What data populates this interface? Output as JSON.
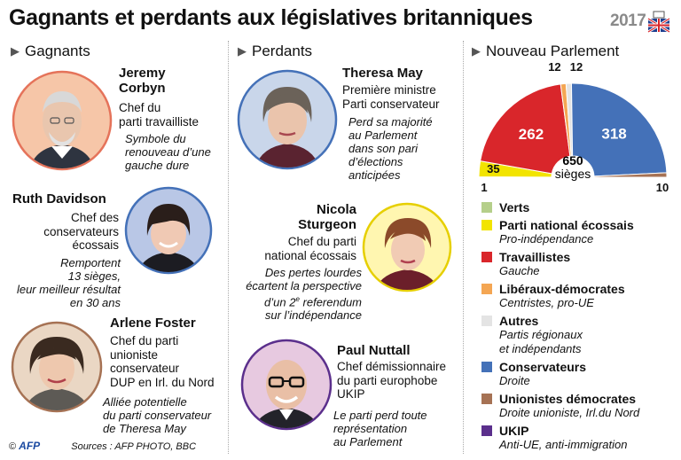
{
  "title": "Gagnants et perdants aux législatives britanniques",
  "badge": {
    "year": "2017"
  },
  "sections": {
    "winners": "Gagnants",
    "losers": "Perdants",
    "parliament": "Nouveau Parlement"
  },
  "winners": [
    {
      "name": [
        "Jeremy",
        "Corbyn"
      ],
      "role": [
        "Chef du",
        "parti travailliste"
      ],
      "note": [
        "Symbole du",
        "renouveau d’une",
        "gauche dure"
      ]
    },
    {
      "name": [
        "Ruth Davidson"
      ],
      "role": [
        "Chef des",
        "conservateurs",
        "écossais"
      ],
      "note": [
        "Remportent",
        "13 sièges,",
        "leur meilleur résultat",
        "en 30 ans"
      ]
    },
    {
      "name": [
        "Arlene Foster"
      ],
      "role": [
        "Chef du parti",
        "unioniste",
        "conservateur",
        "DUP en Irl. du Nord"
      ],
      "note": [
        "Alliée potentielle",
        "du parti conservateur",
        "de Theresa May"
      ]
    }
  ],
  "losers": [
    {
      "name": [
        "Theresa May"
      ],
      "role": [
        "Première ministre",
        "Parti conservateur"
      ],
      "note": [
        "Perd sa majorité",
        "au Parlement",
        "dans son pari",
        "d’élections",
        "anticipées"
      ]
    },
    {
      "name": [
        "Nicola",
        "Sturgeon"
      ],
      "role": [
        "Chef du parti",
        "national écossais"
      ],
      "note": [
        "Des pertes lourdes",
        "écartent la perspective",
        "d’un 2",
        "e",
        " referendum",
        "sur l’indépendance"
      ]
    },
    {
      "name": [
        "Paul Nuttall"
      ],
      "role": [
        "Chef démissionnaire",
        "du parti europhobe",
        "UKIP"
      ],
      "note": [
        "Le parti perd toute",
        "représentation",
        "au Parlement"
      ]
    }
  ],
  "chart_data": {
    "type": "pie",
    "variant": "semicircle",
    "total": 650,
    "total_label": "sièges",
    "slices": [
      {
        "party": "Verts",
        "seats": 1,
        "color": "#b5cf8a"
      },
      {
        "party": "Parti national écossais",
        "seats": 35,
        "color": "#f2e400"
      },
      {
        "party": "Travaillistes",
        "seats": 262,
        "color": "#d9262b"
      },
      {
        "party": "Libéraux-démocrates",
        "seats": 12,
        "color": "#f4a653"
      },
      {
        "party": "Autres",
        "seats": 12,
        "color": "#e4e4e4"
      },
      {
        "party": "Conservateurs",
        "seats": 318,
        "color": "#4471b8"
      },
      {
        "party": "Unionistes démocrates",
        "seats": 10,
        "color": "#a67254"
      },
      {
        "party": "UKIP",
        "seats": 0,
        "color": "#5b2f8c"
      }
    ]
  },
  "legend": [
    {
      "label": "Verts",
      "sub": "",
      "color": "#b5cf8a"
    },
    {
      "label": "Parti national écossais",
      "sub": "Pro-indépendance",
      "color": "#f2e400"
    },
    {
      "label": "Travaillistes",
      "sub": "Gauche",
      "color": "#d9262b"
    },
    {
      "label": "Libéraux-démocrates",
      "sub": "Centristes, pro-UE",
      "color": "#f4a653"
    },
    {
      "label": "Autres",
      "sub": "Partis régionaux",
      "sub2": "et indépendants",
      "color": "#e4e4e4"
    },
    {
      "label": "Conservateurs",
      "sub": "Droite",
      "color": "#4471b8"
    },
    {
      "label": "Unionistes démocrates",
      "sub": "Droite unioniste, Irl.du Nord",
      "color": "#a67254"
    },
    {
      "label": "UKIP",
      "sub": "Anti-UE, anti-immigration",
      "color": "#5b2f8c"
    }
  ],
  "footer": {
    "copyright": "©",
    "agency": "AFP",
    "sources": "Sources : AFP PHOTO, BBC"
  }
}
